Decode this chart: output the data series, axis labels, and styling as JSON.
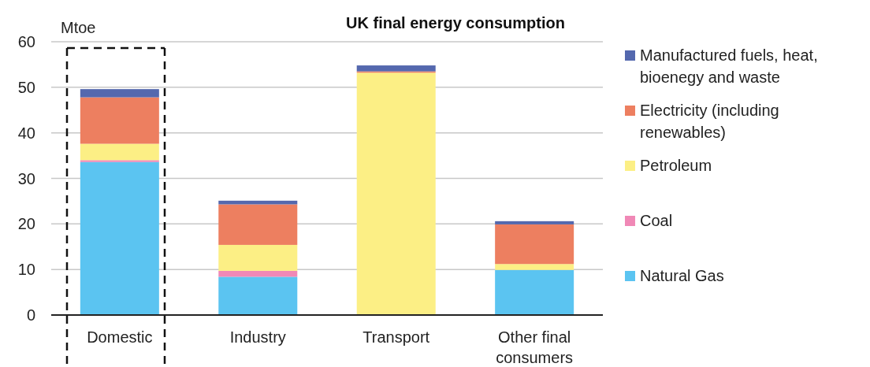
{
  "chart_data": {
    "type": "bar",
    "stacked": true,
    "title": "UK final energy consumption",
    "ylabel": "Mtoe",
    "categories": [
      "Domestic",
      "Industry",
      "Transport",
      "Other final consumers"
    ],
    "ylim": [
      0,
      60
    ],
    "yticks": [
      0,
      10,
      20,
      30,
      40,
      50,
      60
    ],
    "grid": "y",
    "legend": "right",
    "series": [
      {
        "name": "Natural Gas",
        "color": "#5bc4f1",
        "values": [
          33.6,
          8.4,
          0,
          9.9
        ]
      },
      {
        "name": "Coal",
        "color": "#f088b6",
        "values": [
          0.4,
          1.3,
          0,
          0
        ]
      },
      {
        "name": "Petroleum",
        "color": "#fcef85",
        "values": [
          3.6,
          5.7,
          53.2,
          1.3
        ]
      },
      {
        "name": "Electricity (including renewables)",
        "color": "#ed7f60",
        "values": [
          10.2,
          8.9,
          0.3,
          8.7
        ]
      },
      {
        "name": "Manufactured fuels, heat, bioenegy and waste",
        "color": "#5468ae",
        "values": [
          1.8,
          0.8,
          1.3,
          0.7
        ]
      }
    ]
  }
}
